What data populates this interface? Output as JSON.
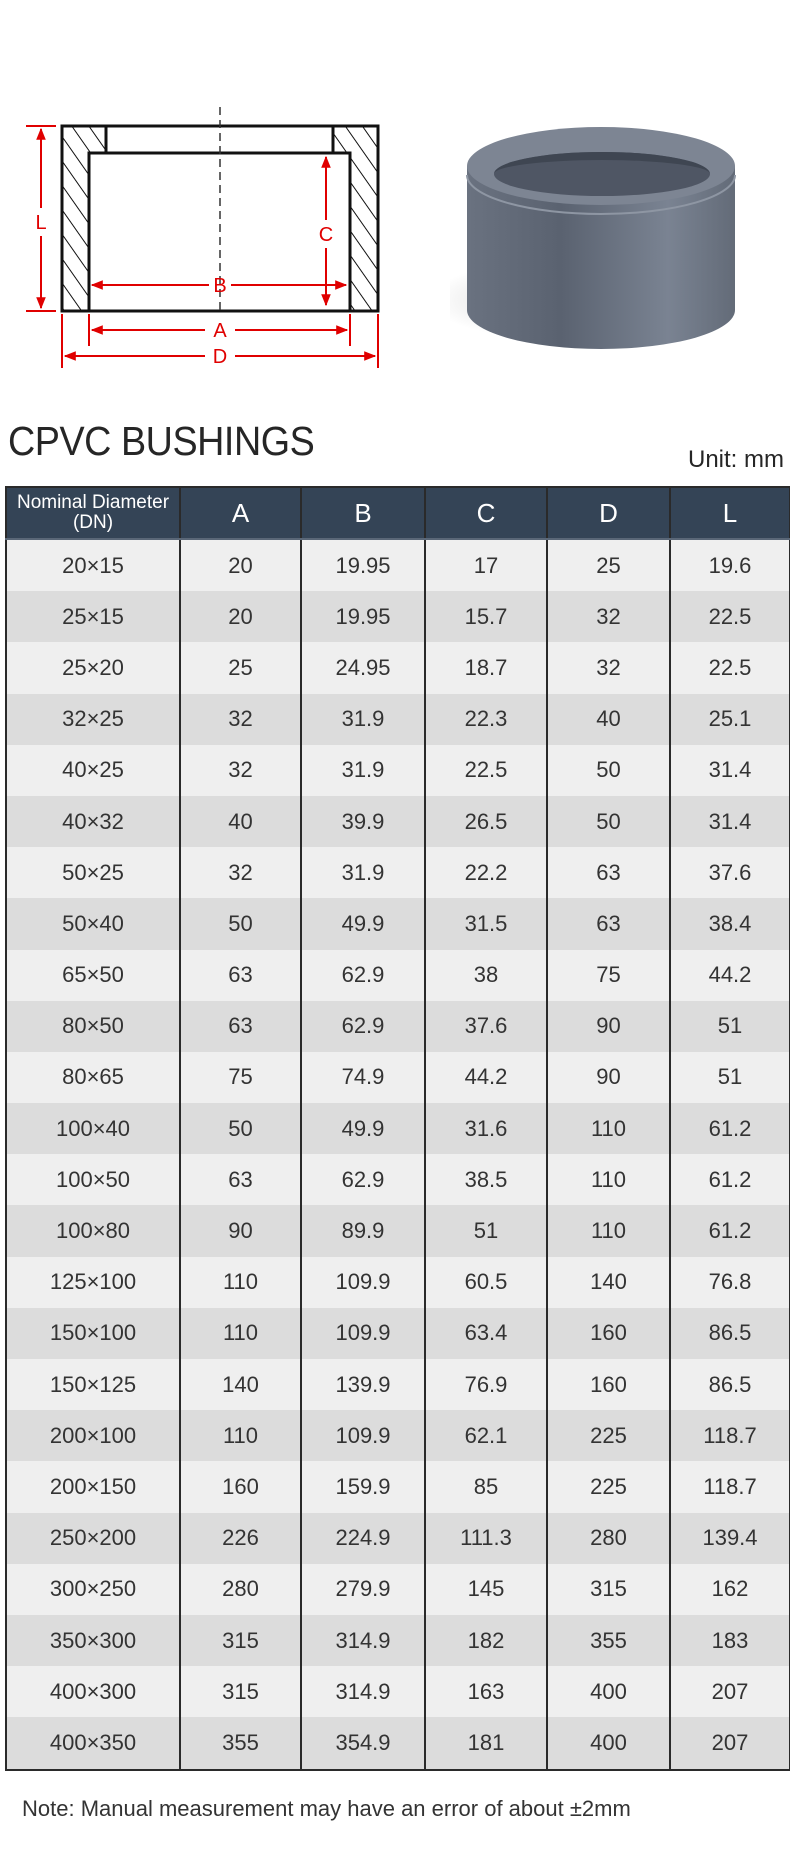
{
  "diagram": {
    "labels": {
      "L": "L",
      "C": "C",
      "B": "B",
      "A": "A",
      "D": "D"
    },
    "dimension_color": "#e00000"
  },
  "product_color": "#6b7482",
  "title": "CPVC BUSHINGS",
  "unit": "Unit: mm",
  "table": {
    "header_color": "#344456",
    "columns": [
      "Nominal Diameter (DN)",
      "A",
      "B",
      "C",
      "D",
      "L"
    ],
    "rows": [
      [
        "20×15",
        "20",
        "19.95",
        "17",
        "25",
        "19.6"
      ],
      [
        "25×15",
        "20",
        "19.95",
        "15.7",
        "32",
        "22.5"
      ],
      [
        "25×20",
        "25",
        "24.95",
        "18.7",
        "32",
        "22.5"
      ],
      [
        "32×25",
        "32",
        "31.9",
        "22.3",
        "40",
        "25.1"
      ],
      [
        "40×25",
        "32",
        "31.9",
        "22.5",
        "50",
        "31.4"
      ],
      [
        "40×32",
        "40",
        "39.9",
        "26.5",
        "50",
        "31.4"
      ],
      [
        "50×25",
        "32",
        "31.9",
        "22.2",
        "63",
        "37.6"
      ],
      [
        "50×40",
        "50",
        "49.9",
        "31.5",
        "63",
        "38.4"
      ],
      [
        "65×50",
        "63",
        "62.9",
        "38",
        "75",
        "44.2"
      ],
      [
        "80×50",
        "63",
        "62.9",
        "37.6",
        "90",
        "51"
      ],
      [
        "80×65",
        "75",
        "74.9",
        "44.2",
        "90",
        "51"
      ],
      [
        "100×40",
        "50",
        "49.9",
        "31.6",
        "110",
        "61.2"
      ],
      [
        "100×50",
        "63",
        "62.9",
        "38.5",
        "110",
        "61.2"
      ],
      [
        "100×80",
        "90",
        "89.9",
        "51",
        "110",
        "61.2"
      ],
      [
        "125×100",
        "110",
        "109.9",
        "60.5",
        "140",
        "76.8"
      ],
      [
        "150×100",
        "110",
        "109.9",
        "63.4",
        "160",
        "86.5"
      ],
      [
        "150×125",
        "140",
        "139.9",
        "76.9",
        "160",
        "86.5"
      ],
      [
        "200×100",
        "110",
        "109.9",
        "62.1",
        "225",
        "118.7"
      ],
      [
        "200×150",
        "160",
        "159.9",
        "85",
        "225",
        "118.7"
      ],
      [
        "250×200",
        "226",
        "224.9",
        "111.3",
        "280",
        "139.4"
      ],
      [
        "300×250",
        "280",
        "279.9",
        "145",
        "315",
        "162"
      ],
      [
        "350×300",
        "315",
        "314.9",
        "182",
        "355",
        "183"
      ],
      [
        "400×300",
        "315",
        "314.9",
        "163",
        "400",
        "207"
      ],
      [
        "400×350",
        "355",
        "354.9",
        "181",
        "400",
        "207"
      ]
    ]
  },
  "note": "Note: Manual measurement may have an error of about ±2mm"
}
